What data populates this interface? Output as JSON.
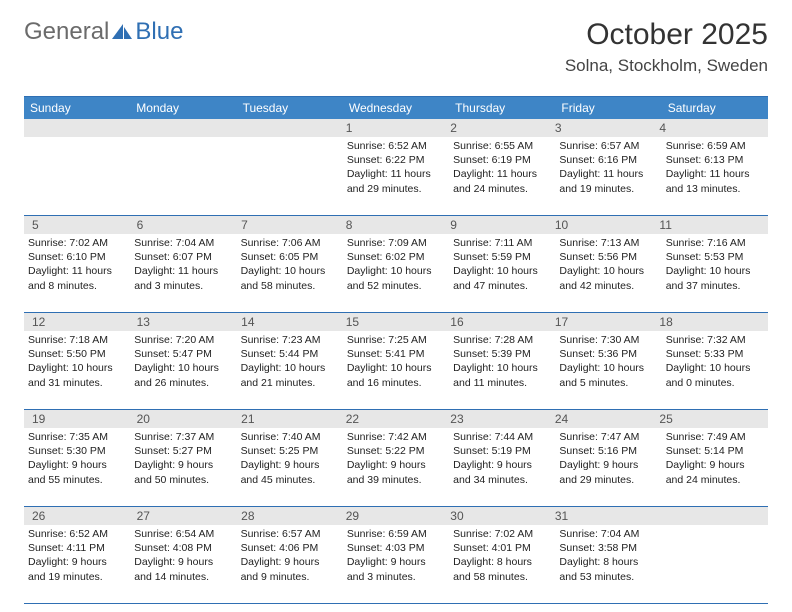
{
  "logo": {
    "text_general": "General",
    "text_blue": "Blue"
  },
  "title": "October 2025",
  "location": "Solna, Stockholm, Sweden",
  "colors": {
    "header_bg": "#3e85c6",
    "rule": "#2f6fb3",
    "daynum_bg": "#e7e7e7",
    "logo_gray": "#6b6b6b",
    "logo_blue": "#2f6fb3"
  },
  "weekdays": [
    "Sunday",
    "Monday",
    "Tuesday",
    "Wednesday",
    "Thursday",
    "Friday",
    "Saturday"
  ],
  "weeks": [
    {
      "nums": [
        "",
        "",
        "",
        "1",
        "2",
        "3",
        "4"
      ],
      "cells": [
        null,
        null,
        null,
        {
          "sunrise": "6:52 AM",
          "sunset": "6:22 PM",
          "daylight": "11 hours and 29 minutes."
        },
        {
          "sunrise": "6:55 AM",
          "sunset": "6:19 PM",
          "daylight": "11 hours and 24 minutes."
        },
        {
          "sunrise": "6:57 AM",
          "sunset": "6:16 PM",
          "daylight": "11 hours and 19 minutes."
        },
        {
          "sunrise": "6:59 AM",
          "sunset": "6:13 PM",
          "daylight": "11 hours and 13 minutes."
        }
      ]
    },
    {
      "nums": [
        "5",
        "6",
        "7",
        "8",
        "9",
        "10",
        "11"
      ],
      "cells": [
        {
          "sunrise": "7:02 AM",
          "sunset": "6:10 PM",
          "daylight": "11 hours and 8 minutes."
        },
        {
          "sunrise": "7:04 AM",
          "sunset": "6:07 PM",
          "daylight": "11 hours and 3 minutes."
        },
        {
          "sunrise": "7:06 AM",
          "sunset": "6:05 PM",
          "daylight": "10 hours and 58 minutes."
        },
        {
          "sunrise": "7:09 AM",
          "sunset": "6:02 PM",
          "daylight": "10 hours and 52 minutes."
        },
        {
          "sunrise": "7:11 AM",
          "sunset": "5:59 PM",
          "daylight": "10 hours and 47 minutes."
        },
        {
          "sunrise": "7:13 AM",
          "sunset": "5:56 PM",
          "daylight": "10 hours and 42 minutes."
        },
        {
          "sunrise": "7:16 AM",
          "sunset": "5:53 PM",
          "daylight": "10 hours and 37 minutes."
        }
      ]
    },
    {
      "nums": [
        "12",
        "13",
        "14",
        "15",
        "16",
        "17",
        "18"
      ],
      "cells": [
        {
          "sunrise": "7:18 AM",
          "sunset": "5:50 PM",
          "daylight": "10 hours and 31 minutes."
        },
        {
          "sunrise": "7:20 AM",
          "sunset": "5:47 PM",
          "daylight": "10 hours and 26 minutes."
        },
        {
          "sunrise": "7:23 AM",
          "sunset": "5:44 PM",
          "daylight": "10 hours and 21 minutes."
        },
        {
          "sunrise": "7:25 AM",
          "sunset": "5:41 PM",
          "daylight": "10 hours and 16 minutes."
        },
        {
          "sunrise": "7:28 AM",
          "sunset": "5:39 PM",
          "daylight": "10 hours and 11 minutes."
        },
        {
          "sunrise": "7:30 AM",
          "sunset": "5:36 PM",
          "daylight": "10 hours and 5 minutes."
        },
        {
          "sunrise": "7:32 AM",
          "sunset": "5:33 PM",
          "daylight": "10 hours and 0 minutes."
        }
      ]
    },
    {
      "nums": [
        "19",
        "20",
        "21",
        "22",
        "23",
        "24",
        "25"
      ],
      "cells": [
        {
          "sunrise": "7:35 AM",
          "sunset": "5:30 PM",
          "daylight": "9 hours and 55 minutes."
        },
        {
          "sunrise": "7:37 AM",
          "sunset": "5:27 PM",
          "daylight": "9 hours and 50 minutes."
        },
        {
          "sunrise": "7:40 AM",
          "sunset": "5:25 PM",
          "daylight": "9 hours and 45 minutes."
        },
        {
          "sunrise": "7:42 AM",
          "sunset": "5:22 PM",
          "daylight": "9 hours and 39 minutes."
        },
        {
          "sunrise": "7:44 AM",
          "sunset": "5:19 PM",
          "daylight": "9 hours and 34 minutes."
        },
        {
          "sunrise": "7:47 AM",
          "sunset": "5:16 PM",
          "daylight": "9 hours and 29 minutes."
        },
        {
          "sunrise": "7:49 AM",
          "sunset": "5:14 PM",
          "daylight": "9 hours and 24 minutes."
        }
      ]
    },
    {
      "nums": [
        "26",
        "27",
        "28",
        "29",
        "30",
        "31",
        ""
      ],
      "cells": [
        {
          "sunrise": "6:52 AM",
          "sunset": "4:11 PM",
          "daylight": "9 hours and 19 minutes."
        },
        {
          "sunrise": "6:54 AM",
          "sunset": "4:08 PM",
          "daylight": "9 hours and 14 minutes."
        },
        {
          "sunrise": "6:57 AM",
          "sunset": "4:06 PM",
          "daylight": "9 hours and 9 minutes."
        },
        {
          "sunrise": "6:59 AM",
          "sunset": "4:03 PM",
          "daylight": "9 hours and 3 minutes."
        },
        {
          "sunrise": "7:02 AM",
          "sunset": "4:01 PM",
          "daylight": "8 hours and 58 minutes."
        },
        {
          "sunrise": "7:04 AM",
          "sunset": "3:58 PM",
          "daylight": "8 hours and 53 minutes."
        },
        null
      ]
    }
  ],
  "labels": {
    "sunrise": "Sunrise:",
    "sunset": "Sunset:",
    "daylight": "Daylight:"
  }
}
